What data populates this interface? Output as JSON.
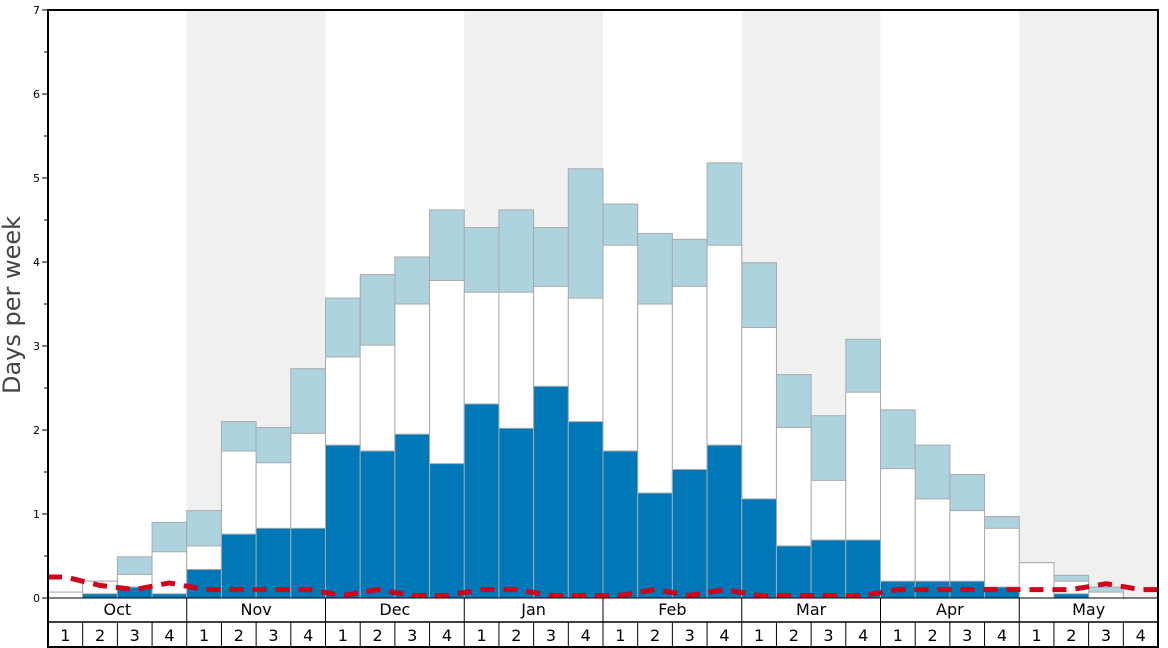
{
  "chart_data": {
    "type": "bar",
    "ylabel": "Days per week",
    "ylim": [
      0,
      7
    ],
    "yticks": [
      0,
      1,
      2,
      3,
      4,
      5,
      6,
      7
    ],
    "months": [
      "Oct",
      "Nov",
      "Dec",
      "Jan",
      "Feb",
      "Mar",
      "Apr",
      "May"
    ],
    "weeks": [
      "1",
      "2",
      "3",
      "4"
    ],
    "colors": {
      "dark": "#0077b6",
      "white": "#ffffff",
      "light": "#add3df",
      "bar_edge": "#aaaaaa",
      "shade": "#f0f0f0",
      "line": "#d0021b"
    },
    "series": [
      {
        "values": [
          0.0,
          0.05,
          0.13,
          0.05,
          0.34,
          0.76,
          0.83,
          0.83,
          1.82,
          1.75,
          1.95,
          1.6,
          2.31,
          2.02,
          2.52,
          2.1,
          1.75,
          1.25,
          1.53,
          1.82,
          1.18,
          0.62,
          0.69,
          0.69,
          0.2,
          0.2,
          0.2,
          0.13,
          0.0,
          0.05,
          0.0,
          0.0
        ]
      },
      {
        "values": [
          0.07,
          0.2,
          0.28,
          0.55,
          0.62,
          1.75,
          1.61,
          1.96,
          2.87,
          3.01,
          3.5,
          3.78,
          3.64,
          3.64,
          3.71,
          3.57,
          4.2,
          3.5,
          3.71,
          4.2,
          3.22,
          2.03,
          1.4,
          2.45,
          1.54,
          1.18,
          1.04,
          0.83,
          0.42,
          0.2,
          0.07,
          0.0
        ]
      },
      {
        "values": [
          0.07,
          0.2,
          0.49,
          0.9,
          1.04,
          2.1,
          2.03,
          2.73,
          3.57,
          3.85,
          4.06,
          4.62,
          4.41,
          4.62,
          4.41,
          5.11,
          4.69,
          4.34,
          4.27,
          5.18,
          3.99,
          2.66,
          2.17,
          3.08,
          2.24,
          1.82,
          1.47,
          0.97,
          0.42,
          0.27,
          0.13,
          0.0
        ]
      },
      {
        "type": "line",
        "style": "dashed",
        "values": [
          0.25,
          0.15,
          0.1,
          0.18,
          0.1,
          0.1,
          0.1,
          0.1,
          0.03,
          0.1,
          0.03,
          0.03,
          0.1,
          0.1,
          0.03,
          0.03,
          0.03,
          0.1,
          0.03,
          0.1,
          0.03,
          0.03,
          0.03,
          0.03,
          0.1,
          0.1,
          0.1,
          0.1,
          0.1,
          0.1,
          0.17,
          0.1
        ]
      }
    ]
  }
}
